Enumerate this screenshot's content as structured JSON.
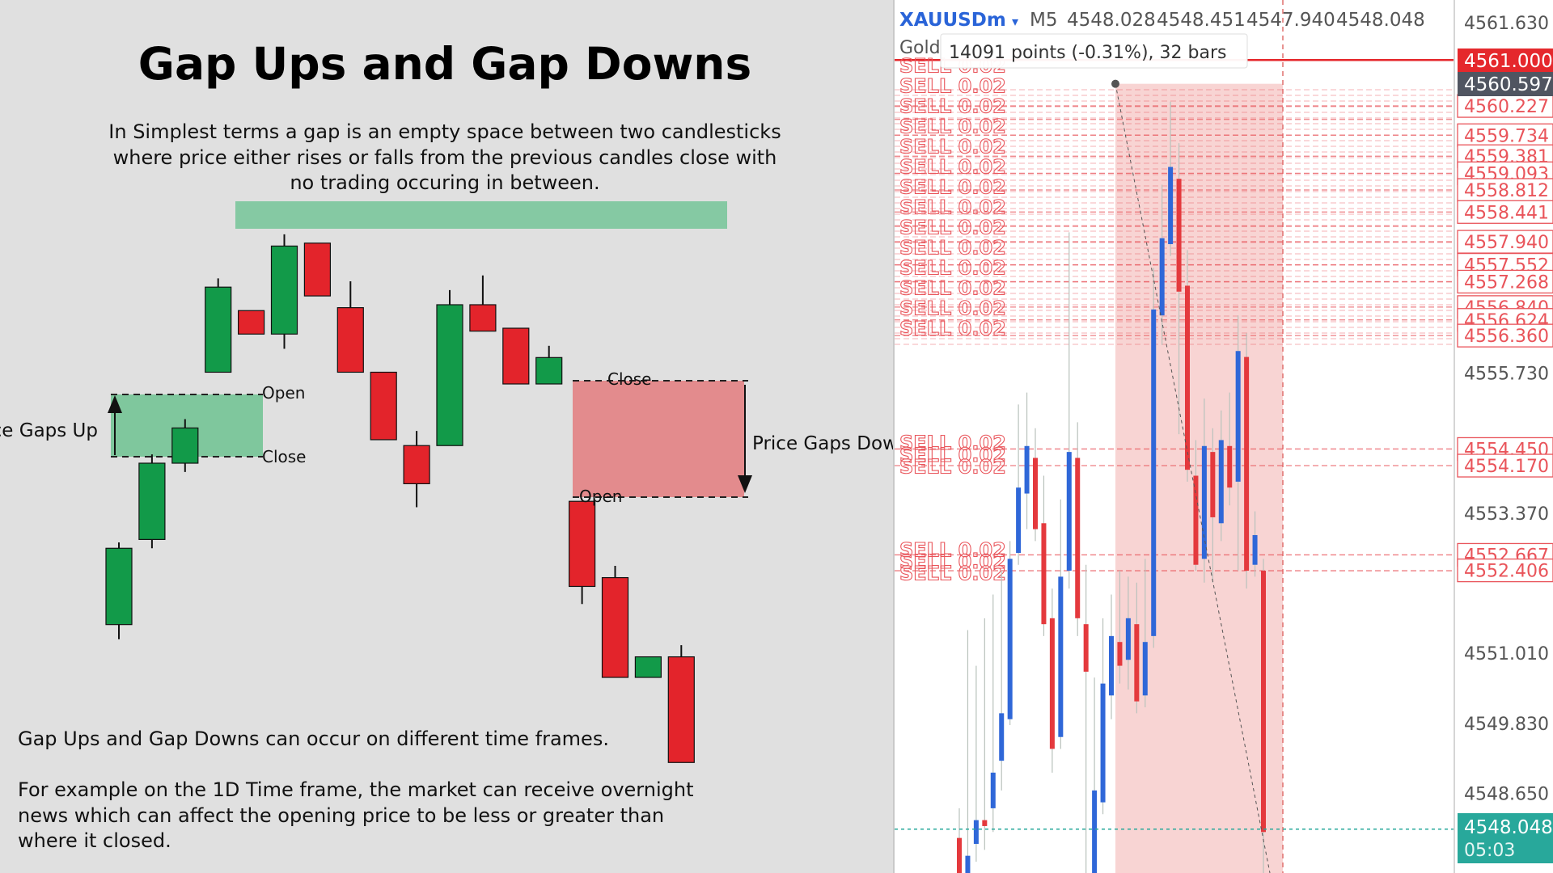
{
  "colors": {
    "left_bg": "#e0e0e0",
    "bull": "#129a49",
    "bear": "#e3242b",
    "gap_up_zone": "#7fc79d",
    "gap_down_zone": "#e38b8d",
    "top_zone": "#85c9a3",
    "chart_bg": "#ffffff",
    "blue_candle": "#2f67d8",
    "red_candle": "#e4393d",
    "sell_red": "#e9545a",
    "measure_fill": "#f8d4d3",
    "price_tag_red": "#e5282c",
    "price_tag_dark": "#505561",
    "price_tag_teal": "#28a89b",
    "symbol_blue": "#2a64d8"
  },
  "left_panel": {
    "title": "Gap Ups and Gap Downs",
    "intro_lines": [
      "In Simplest terms a gap is an empty space between two candlesticks",
      "where price either rises or falls from the previous candles close with",
      "no trading occuring in between."
    ],
    "labels": {
      "open_up": "Open",
      "close_up": "Close",
      "gap_up": "Price Gaps Up",
      "close_down": "Close",
      "open_down": "Open",
      "gap_down": "Price Gaps Down"
    },
    "footer_line1": "Gap Ups and Gap Downs can occur on different time frames.",
    "footer_lines": [
      "For example on the 1D Time frame, the market can receive overnight",
      "news which can affect the opening price to be less or greater than",
      "where it closed."
    ]
  },
  "right_panel": {
    "symbol": "XAUUSDm",
    "symbol_arrow": "▾",
    "timeframe": "M5",
    "ohlc": [
      "4548.028",
      "4548.451",
      "4547.940",
      "4548.048"
    ],
    "subtitle": "Gold",
    "measure_tooltip": "14091 points (-0.31%), 32 bars",
    "sell_label": "SELL 0.02",
    "price_tags": {
      "current_red": "4561.000",
      "crosshair": "4560.597",
      "last": "4548.048",
      "countdown": "05:03"
    }
  },
  "chart_data": [
    {
      "type": "candlestick",
      "title": "Gap Ups and Gap Downs",
      "candles": [
        {
          "open": 1.8,
          "close": 4.4,
          "high": 4.6,
          "low": 1.3,
          "dir": "up"
        },
        {
          "open": 4.7,
          "close": 7.3,
          "high": 7.6,
          "low": 4.4,
          "dir": "up"
        },
        {
          "open": 7.3,
          "close": 8.5,
          "high": 8.8,
          "low": 7.0,
          "dir": "up"
        },
        {
          "open": 10.4,
          "close": 13.3,
          "high": 13.6,
          "low": 10.4,
          "dir": "up"
        },
        {
          "open": 12.5,
          "close": 11.7,
          "high": 12.5,
          "low": 11.7,
          "dir": "down"
        },
        {
          "open": 11.7,
          "close": 14.7,
          "high": 15.1,
          "low": 11.2,
          "dir": "up"
        },
        {
          "open": 14.8,
          "close": 13.0,
          "high": 14.8,
          "low": 13.0,
          "dir": "down"
        },
        {
          "open": 12.6,
          "close": 10.4,
          "high": 13.5,
          "low": 10.4,
          "dir": "down"
        },
        {
          "open": 10.4,
          "close": 8.1,
          "high": 10.4,
          "low": 8.1,
          "dir": "down"
        },
        {
          "open": 7.9,
          "close": 6.6,
          "high": 8.4,
          "low": 5.8,
          "dir": "down"
        },
        {
          "open": 7.9,
          "close": 12.7,
          "high": 13.2,
          "low": 7.9,
          "dir": "up"
        },
        {
          "open": 12.7,
          "close": 11.8,
          "high": 13.7,
          "low": 11.8,
          "dir": "down"
        },
        {
          "open": 11.9,
          "close": 10.0,
          "high": 11.9,
          "low": 10.0,
          "dir": "down"
        },
        {
          "open": 10.0,
          "close": 10.9,
          "high": 11.3,
          "low": 10.0,
          "dir": "up"
        },
        {
          "open": 6.0,
          "close": 3.1,
          "high": 6.0,
          "low": 2.5,
          "dir": "down"
        },
        {
          "open": 3.4,
          "close": 0.0,
          "high": 3.8,
          "low": 0.0,
          "dir": "down"
        },
        {
          "open": 0.0,
          "close": 0.7,
          "high": 0.7,
          "low": 0.0,
          "dir": "up"
        },
        {
          "open": 0.7,
          "close": -2.9,
          "high": 1.1,
          "low": -2.9,
          "dir": "down"
        }
      ]
    },
    {
      "type": "candlestick",
      "symbol": "XAUUSDm",
      "timeframe": "M5",
      "y_ticks": [
        "4561.630",
        "4555.730",
        "4553.370",
        "4551.010",
        "4549.830",
        "4548.650"
      ],
      "ylim": [
        4546.9,
        4562.1
      ],
      "order_lines": [
        4561.0,
        4560.227,
        4560.0,
        4559.734,
        4559.381,
        4559.093,
        4558.812,
        4558.441,
        4558.2,
        4557.94,
        4557.552,
        4557.268,
        4556.84,
        4556.624,
        4556.36,
        4554.45,
        4554.17,
        4552.667,
        4552.4
      ],
      "order_tag_values": [
        "4560.227",
        "4559.734",
        "4559.381",
        "4559.093",
        "4558.812",
        "4558.441",
        "4557.940",
        "4557.552",
        "4557.268",
        "4556.840",
        "4556.624",
        "4556.360",
        "4554.450",
        "4554.170",
        "4552.667",
        "4552.406"
      ],
      "last_price": 4548.048,
      "candles": [
        {
          "o": 4547.9,
          "c": 4547.2,
          "h": 4548.4,
          "l": 4546.9
        },
        {
          "o": 4547.0,
          "c": 4547.6,
          "h": 4551.4,
          "l": 4546.9
        },
        {
          "o": 4547.8,
          "c": 4548.2,
          "h": 4550.8,
          "l": 4547.5
        },
        {
          "o": 4548.2,
          "c": 4548.1,
          "h": 4551.6,
          "l": 4547.7
        },
        {
          "o": 4548.4,
          "c": 4549.0,
          "h": 4552.0,
          "l": 4548.0
        },
        {
          "o": 4549.2,
          "c": 4550.0,
          "h": 4552.4,
          "l": 4548.7
        },
        {
          "o": 4549.9,
          "c": 4552.6,
          "h": 4552.9,
          "l": 4549.8
        },
        {
          "o": 4552.7,
          "c": 4553.8,
          "h": 4555.2,
          "l": 4552.5
        },
        {
          "o": 4553.7,
          "c": 4554.5,
          "h": 4555.4,
          "l": 4553.1
        },
        {
          "o": 4554.3,
          "c": 4553.1,
          "h": 4554.8,
          "l": 4552.9
        },
        {
          "o": 4553.2,
          "c": 4551.5,
          "h": 4554.0,
          "l": 4551.3
        },
        {
          "o": 4551.6,
          "c": 4549.4,
          "h": 4552.1,
          "l": 4549.0
        },
        {
          "o": 4549.6,
          "c": 4552.3,
          "h": 4553.6,
          "l": 4549.4
        },
        {
          "o": 4552.4,
          "c": 4554.4,
          "h": 4558.1,
          "l": 4552.1
        },
        {
          "o": 4554.3,
          "c": 4551.6,
          "h": 4554.9,
          "l": 4551.3
        },
        {
          "o": 4551.5,
          "c": 4550.7,
          "h": 4552.5,
          "l": 4546.9
        },
        {
          "o": 4547.0,
          "c": 4548.7,
          "h": 4550.6,
          "l": 4546.9
        },
        {
          "o": 4548.5,
          "c": 4550.5,
          "h": 4551.6,
          "l": 4548.3
        },
        {
          "o": 4550.3,
          "c": 4551.3,
          "h": 4552.0,
          "l": 4549.9
        },
        {
          "o": 4551.2,
          "c": 4550.8,
          "h": 4552.4,
          "l": 4550.5
        },
        {
          "o": 4550.9,
          "c": 4551.6,
          "h": 4552.3,
          "l": 4550.4
        },
        {
          "o": 4551.5,
          "c": 4550.2,
          "h": 4552.2,
          "l": 4550.0
        },
        {
          "o": 4550.3,
          "c": 4551.2,
          "h": 4552.6,
          "l": 4550.1
        },
        {
          "o": 4551.3,
          "c": 4556.8,
          "h": 4557.5,
          "l": 4551.1
        },
        {
          "o": 4556.7,
          "c": 4558.0,
          "h": 4558.9,
          "l": 4556.2
        },
        {
          "o": 4557.9,
          "c": 4559.2,
          "h": 4560.3,
          "l": 4557.7
        },
        {
          "o": 4559.0,
          "c": 4557.1,
          "h": 4559.6,
          "l": 4554.7
        },
        {
          "o": 4557.2,
          "c": 4554.1,
          "h": 4557.8,
          "l": 4553.9
        },
        {
          "o": 4554.0,
          "c": 4552.5,
          "h": 4554.6,
          "l": 4552.4
        },
        {
          "o": 4552.6,
          "c": 4554.5,
          "h": 4555.3,
          "l": 4552.2
        },
        {
          "o": 4554.4,
          "c": 4553.3,
          "h": 4554.8,
          "l": 4552.2
        },
        {
          "o": 4553.2,
          "c": 4554.6,
          "h": 4555.1,
          "l": 4552.9
        },
        {
          "o": 4554.5,
          "c": 4553.8,
          "h": 4555.4,
          "l": 4553.5
        },
        {
          "o": 4553.9,
          "c": 4556.1,
          "h": 4556.7,
          "l": 4552.4
        },
        {
          "o": 4556.0,
          "c": 4552.4,
          "h": 4556.4,
          "l": 4552.1
        },
        {
          "o": 4552.5,
          "c": 4553.0,
          "h": 4553.4,
          "l": 4552.3
        },
        {
          "o": 4552.4,
          "c": 4548.0,
          "h": 4552.6,
          "l": 4546.9
        }
      ],
      "measure_range": {
        "top": 4560.6,
        "bottom": 4546.9,
        "points": 14091,
        "percent": -0.31,
        "bars": 32
      }
    }
  ]
}
